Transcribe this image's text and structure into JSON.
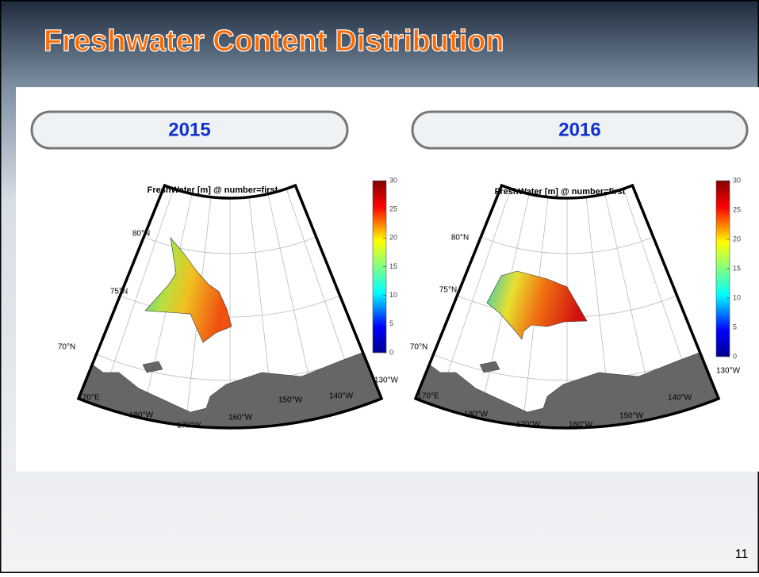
{
  "header": {
    "title": "Freshwater Content Distribution"
  },
  "maps": [
    {
      "year": "2015",
      "title": "FreshWater [m] @ number=first",
      "colorbar_ticks": [
        0,
        5,
        10,
        15,
        20,
        25,
        30
      ],
      "lat_labels": [
        "80°N",
        "75°N",
        "70°N"
      ],
      "lon_labels": [
        "170°E",
        "190°W",
        "170°W",
        "160°W",
        "150°W",
        "140°W",
        "130°W"
      ]
    },
    {
      "year": "2016",
      "title": "FreshWater [m] @ number=first",
      "colorbar_ticks": [
        0,
        5,
        10,
        15,
        20,
        25,
        30
      ],
      "lat_labels": [
        "80°N",
        "75°N",
        "70°N"
      ],
      "lon_labels": [
        "170°E",
        "180°W",
        "170°W",
        "160°W",
        "150°W",
        "140°W",
        "130°W"
      ]
    }
  ],
  "footer": {
    "page_number": "11"
  }
}
